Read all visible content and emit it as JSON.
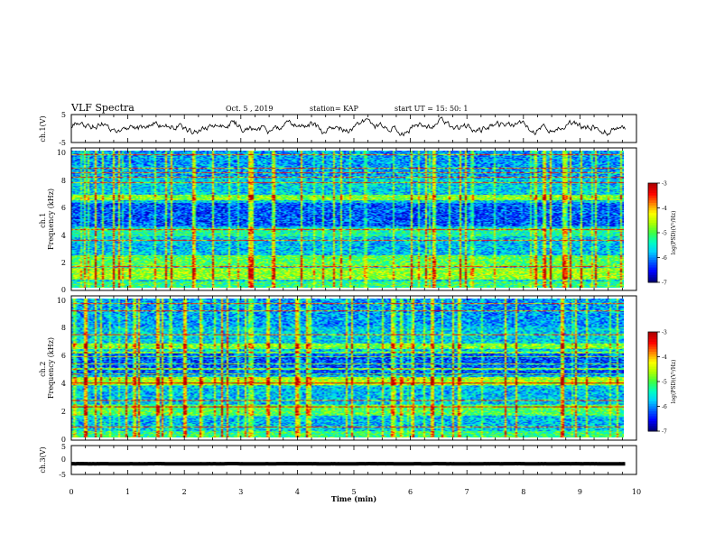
{
  "header": {
    "title": "VLF Spectra",
    "date": "Oct. 5  , 2019",
    "station": "station= KAP",
    "start": "start  UT =   15: 50: 1"
  },
  "chart_data": [
    {
      "type": "line",
      "panel": "ch1-waveform",
      "ylabel": "ch.1(V)",
      "ylim": [
        -5,
        5
      ],
      "yticks": [
        "5",
        "-5"
      ],
      "xlim": [
        0,
        10
      ],
      "series": [
        {
          "baseline": 0.5,
          "amplitude": 2.6
        }
      ]
    },
    {
      "type": "heatmap",
      "panel": "ch1-spectrogram",
      "ylabel": "ch.1\nFrequency (kHz)",
      "ylim": [
        0,
        10
      ],
      "yticks": [
        "0",
        "2",
        "4",
        "6",
        "8",
        "10"
      ],
      "xlim": [
        0,
        9.8
      ],
      "colorbar": {
        "label": "log(PSD)(V²/Hz)",
        "range": [
          -7,
          -3
        ],
        "ticks": [
          "-3",
          "-4",
          "-5",
          "-6",
          "-7"
        ]
      }
    },
    {
      "type": "heatmap",
      "panel": "ch2-spectrogram",
      "ylabel": "ch.2\nFrequency (kHz)",
      "ylim": [
        0,
        10
      ],
      "yticks": [
        "0",
        "2",
        "4",
        "6",
        "8",
        "10"
      ],
      "xlim": [
        0,
        9.8
      ],
      "colorbar": {
        "label": "log(PSD)(V²/Hz)",
        "range": [
          -7,
          -3
        ],
        "ticks": [
          "-3",
          "-4",
          "-5",
          "-6",
          "-7"
        ]
      }
    },
    {
      "type": "line",
      "panel": "ch3-waveform",
      "ylabel": "ch.3(V)",
      "ylim": [
        -5,
        5
      ],
      "yticks": [
        "5",
        "0",
        "-5"
      ],
      "xlim": [
        0,
        10
      ],
      "series": [
        {
          "baseline": -1.3,
          "amplitude": 0.05
        }
      ]
    }
  ],
  "xaxis": {
    "label": "Time  (min)",
    "ticks": [
      "0",
      "1",
      "2",
      "3",
      "4",
      "5",
      "6",
      "7",
      "8",
      "9",
      "10"
    ],
    "range": [
      0,
      10
    ]
  },
  "colors": {
    "trace": "#000000",
    "colormap": [
      "#00007f",
      "#0000ff",
      "#0060ff",
      "#00d0ff",
      "#00ffc0",
      "#40ff40",
      "#b0ff00",
      "#ffff00",
      "#ff8000",
      "#ff0000",
      "#b00000"
    ]
  }
}
